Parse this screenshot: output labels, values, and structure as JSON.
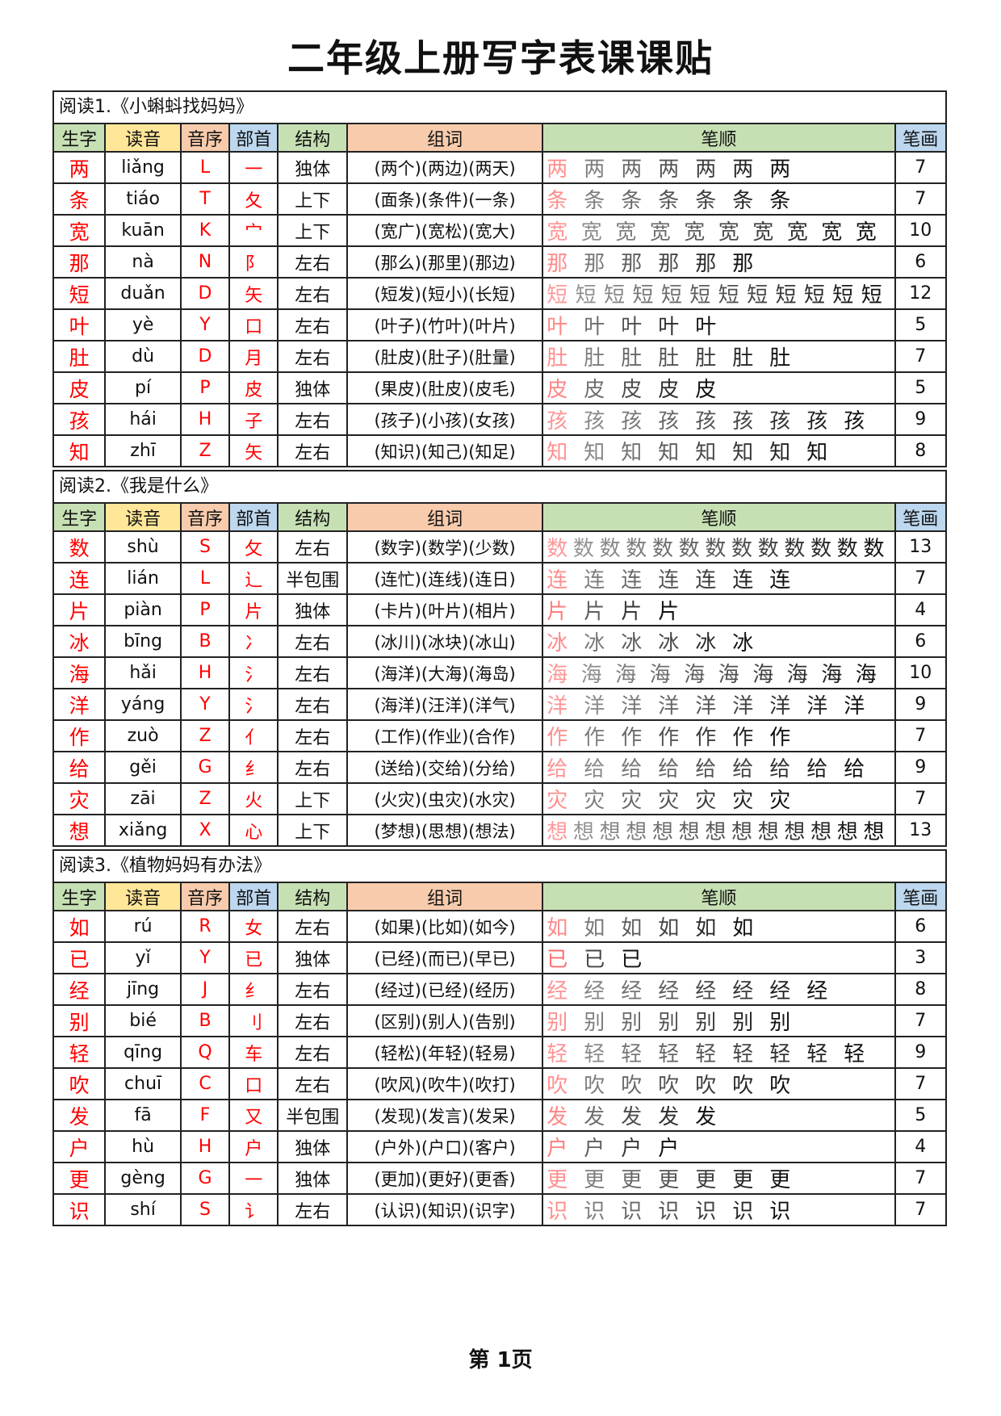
{
  "title": "二年级上册写字表课课贴",
  "headers": [
    "生字",
    "读音",
    "音序",
    "部首",
    "结构",
    "组词",
    "笔顺",
    "笔画"
  ],
  "colors": {
    "header_green": "#c6e0b4",
    "header_yellow": "#ffe699",
    "header_orange": "#f8cbad",
    "header_blue": "#bdd7ee",
    "char_red": "#ff0000"
  },
  "sections": [
    {
      "label": "阅读1.《小蝌蚪找妈妈》",
      "rows": [
        {
          "char": "两",
          "pinyin": "liǎng",
          "initial": "L",
          "radical": "一",
          "structure": "独体",
          "words": "(两个)(两边)(两天)",
          "strokes": "7"
        },
        {
          "char": "条",
          "pinyin": "tiáo",
          "initial": "T",
          "radical": "夂",
          "structure": "上下",
          "words": "(面条)(条件)(一条)",
          "strokes": "7"
        },
        {
          "char": "宽",
          "pinyin": "kuān",
          "initial": "K",
          "radical": "宀",
          "structure": "上下",
          "words": "(宽广)(宽松)(宽大)",
          "strokes": "10"
        },
        {
          "char": "那",
          "pinyin": "nà",
          "initial": "N",
          "radical": "阝",
          "structure": "左右",
          "words": "(那么)(那里)(那边)",
          "strokes": "6"
        },
        {
          "char": "短",
          "pinyin": "duǎn",
          "initial": "D",
          "radical": "矢",
          "structure": "左右",
          "words": "(短发)(短小)(长短)",
          "strokes": "12"
        },
        {
          "char": "叶",
          "pinyin": "yè",
          "initial": "Y",
          "radical": "口",
          "structure": "左右",
          "words": "(叶子)(竹叶)(叶片)",
          "strokes": "5"
        },
        {
          "char": "肚",
          "pinyin": "dù",
          "initial": "D",
          "radical": "月",
          "structure": "左右",
          "words": "(肚皮)(肚子)(肚量)",
          "strokes": "7"
        },
        {
          "char": "皮",
          "pinyin": "pí",
          "initial": "P",
          "radical": "皮",
          "structure": "独体",
          "words": "(果皮)(肚皮)(皮毛)",
          "strokes": "5"
        },
        {
          "char": "孩",
          "pinyin": "hái",
          "initial": "H",
          "radical": "子",
          "structure": "左右",
          "words": "(孩子)(小孩)(女孩)",
          "strokes": "9"
        },
        {
          "char": "知",
          "pinyin": "zhī",
          "initial": "Z",
          "radical": "矢",
          "structure": "左右",
          "words": "(知识)(知己)(知足)",
          "strokes": "8"
        }
      ]
    },
    {
      "label": "阅读2.《我是什么》",
      "rows": [
        {
          "char": "数",
          "pinyin": "shù",
          "initial": "S",
          "radical": "攵",
          "structure": "左右",
          "words": "(数字)(数学)(少数)",
          "strokes": "13"
        },
        {
          "char": "连",
          "pinyin": "lián",
          "initial": "L",
          "radical": "辶",
          "structure": "半包围",
          "words": "(连忙)(连线)(连日)",
          "strokes": "7"
        },
        {
          "char": "片",
          "pinyin": "piàn",
          "initial": "P",
          "radical": "片",
          "structure": "独体",
          "words": "(卡片)(叶片)(相片)",
          "strokes": "4"
        },
        {
          "char": "冰",
          "pinyin": "bīng",
          "initial": "B",
          "radical": "冫",
          "structure": "左右",
          "words": "(冰川)(冰块)(冰山)",
          "strokes": "6"
        },
        {
          "char": "海",
          "pinyin": "hǎi",
          "initial": "H",
          "radical": "氵",
          "structure": "左右",
          "words": "(海洋)(大海)(海岛)",
          "strokes": "10"
        },
        {
          "char": "洋",
          "pinyin": "yáng",
          "initial": "Y",
          "radical": "氵",
          "structure": "左右",
          "words": "(海洋)(汪洋)(洋气)",
          "strokes": "9"
        },
        {
          "char": "作",
          "pinyin": "zuò",
          "initial": "Z",
          "radical": "亻",
          "structure": "左右",
          "words": "(工作)(作业)(合作)",
          "strokes": "7"
        },
        {
          "char": "给",
          "pinyin": "gěi",
          "initial": "G",
          "radical": "纟",
          "structure": "左右",
          "words": "(送给)(交给)(分给)",
          "strokes": "9"
        },
        {
          "char": "灾",
          "pinyin": "zāi",
          "initial": "Z",
          "radical": "火",
          "structure": "上下",
          "words": "(火灾)(虫灾)(水灾)",
          "strokes": "7"
        },
        {
          "char": "想",
          "pinyin": "xiǎng",
          "initial": "X",
          "radical": "心",
          "structure": "上下",
          "words": "(梦想)(思想)(想法)",
          "strokes": "13"
        }
      ]
    },
    {
      "label": "阅读3.《植物妈妈有办法》",
      "rows": [
        {
          "char": "如",
          "pinyin": "rú",
          "initial": "R",
          "radical": "女",
          "structure": "左右",
          "words": "(如果)(比如)(如今)",
          "strokes": "6"
        },
        {
          "char": "已",
          "pinyin": "yǐ",
          "initial": "Y",
          "radical": "已",
          "structure": "独体",
          "words": "(已经)(而已)(早已)",
          "strokes": "3"
        },
        {
          "char": "经",
          "pinyin": "jīng",
          "initial": "J",
          "radical": "纟",
          "structure": "左右",
          "words": "(经过)(已经)(经历)",
          "strokes": "8"
        },
        {
          "char": "别",
          "pinyin": "bié",
          "initial": "B",
          "radical": "刂",
          "structure": "左右",
          "words": "(区别)(别人)(告别)",
          "strokes": "7"
        },
        {
          "char": "轻",
          "pinyin": "qīng",
          "initial": "Q",
          "radical": "车",
          "structure": "左右",
          "words": "(轻松)(年轻)(轻易)",
          "strokes": "9"
        },
        {
          "char": "吹",
          "pinyin": "chuī",
          "initial": "C",
          "radical": "口",
          "structure": "左右",
          "words": "(吹风)(吹牛)(吹打)",
          "strokes": "7"
        },
        {
          "char": "发",
          "pinyin": "fā",
          "initial": "F",
          "radical": "又",
          "structure": "半包围",
          "words": "(发现)(发言)(发呆)",
          "strokes": "5"
        },
        {
          "char": "户",
          "pinyin": "hù",
          "initial": "H",
          "radical": "户",
          "structure": "独体",
          "words": "(户外)(户口)(客户)",
          "strokes": "4"
        },
        {
          "char": "更",
          "pinyin": "gèng",
          "initial": "G",
          "radical": "一",
          "structure": "独体",
          "words": "(更加)(更好)(更香)",
          "strokes": "7"
        },
        {
          "char": "识",
          "pinyin": "shí",
          "initial": "S",
          "radical": "讠",
          "structure": "左右",
          "words": "(认识)(知识)(识字)",
          "strokes": "7"
        }
      ]
    }
  ],
  "footer": "第 1页"
}
